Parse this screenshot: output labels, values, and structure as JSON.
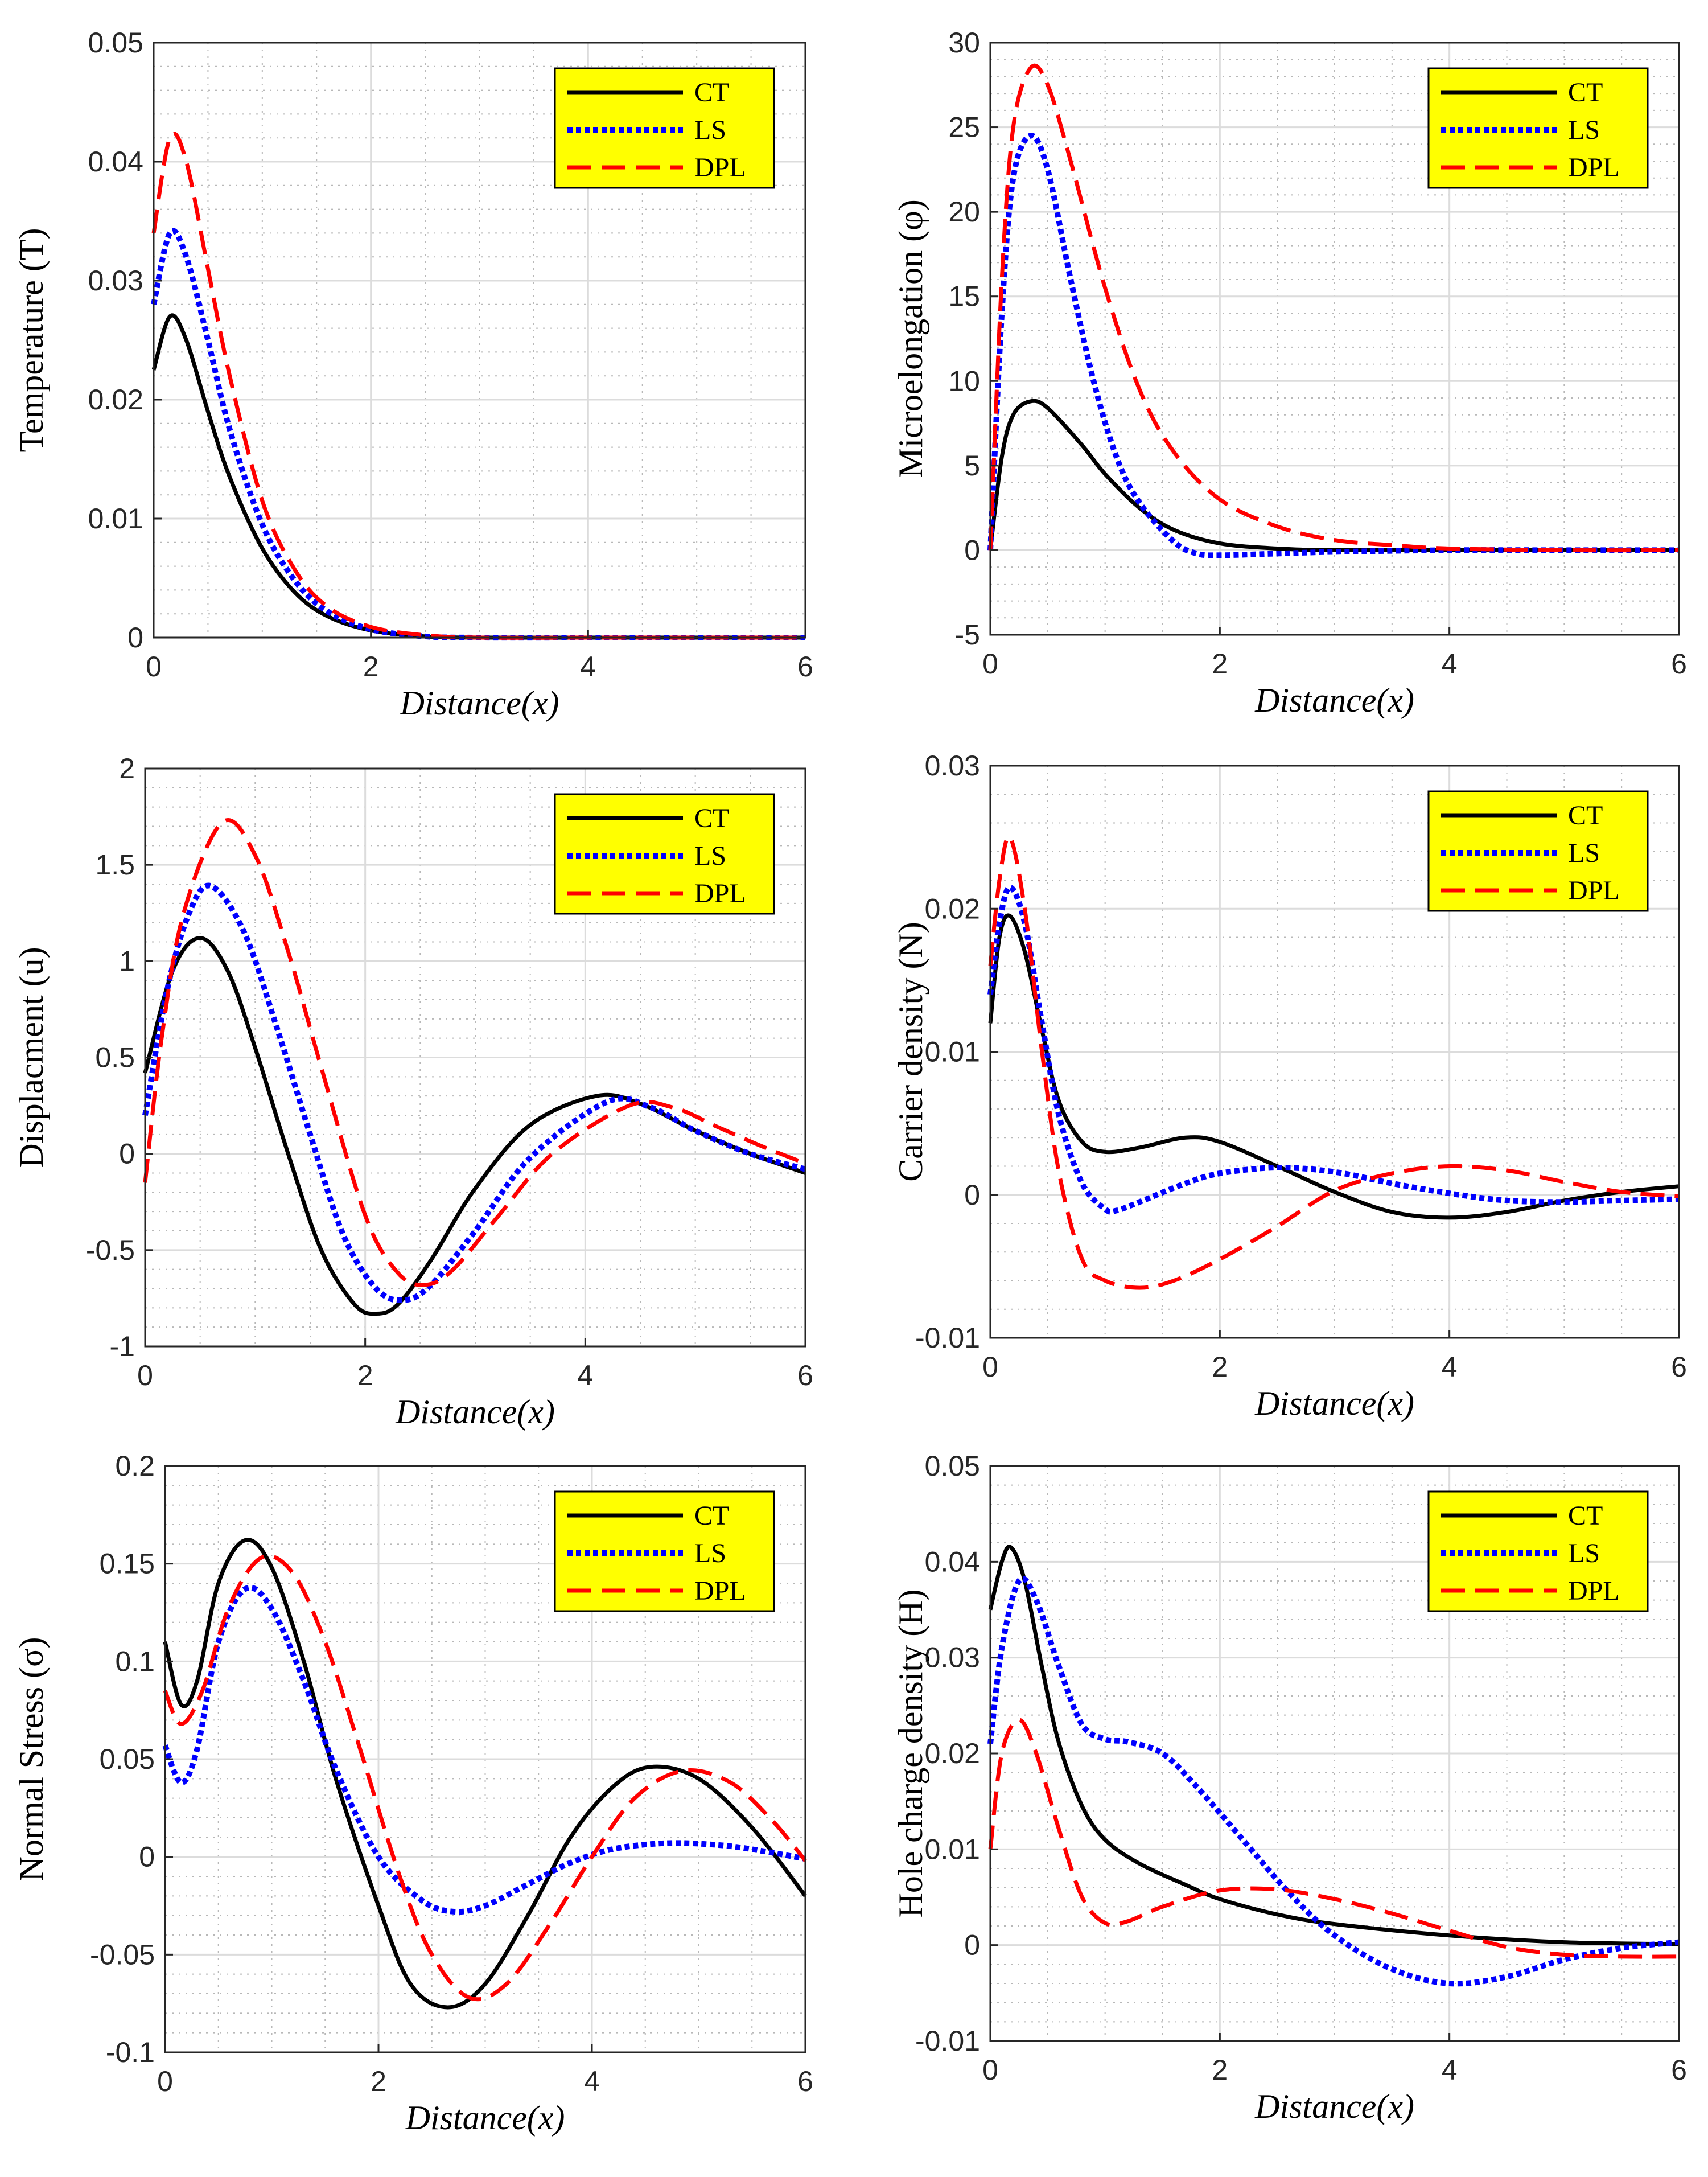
{
  "chart_data": [
    {
      "type": "line",
      "xlabel": "Distance(x)",
      "ylabel": "Temperature (T)",
      "xlim": [
        0,
        6
      ],
      "ylim": [
        0,
        0.05
      ],
      "xticks": [
        0,
        2,
        4,
        6
      ],
      "xtick_labels": [
        "0",
        "2",
        "4",
        "6"
      ],
      "yticks": [
        0,
        0.01,
        0.02,
        0.03,
        0.04,
        0.05
      ],
      "ytick_labels": [
        "0",
        "0.01",
        "0.02",
        "0.03",
        "0.04",
        "0.05"
      ],
      "grid": true,
      "legend_position": "top-right",
      "series": [
        {
          "name": "CT",
          "x": [
            0,
            0.15,
            0.3,
            0.5,
            0.7,
            1.0,
            1.3,
            1.6,
            2.0,
            2.5,
            3.0,
            4.0,
            5.0,
            6.0
          ],
          "y": [
            0.0225,
            0.027,
            0.025,
            0.019,
            0.0135,
            0.0075,
            0.0038,
            0.0018,
            0.0006,
            0.0001,
            0,
            0,
            0,
            0
          ]
        },
        {
          "name": "LS",
          "x": [
            0,
            0.15,
            0.3,
            0.5,
            0.7,
            1.0,
            1.3,
            1.6,
            2.0,
            2.5,
            3.0,
            4.0,
            5.0,
            6.0
          ],
          "y": [
            0.028,
            0.034,
            0.032,
            0.025,
            0.0175,
            0.0095,
            0.0048,
            0.0022,
            0.0007,
            0.0001,
            0,
            0,
            0,
            0
          ]
        },
        {
          "name": "DPL",
          "x": [
            0,
            0.15,
            0.3,
            0.5,
            0.7,
            1.0,
            1.3,
            1.6,
            2.0,
            2.5,
            3.0,
            4.0,
            5.0,
            6.0
          ],
          "y": [
            0.034,
            0.042,
            0.04,
            0.031,
            0.022,
            0.0115,
            0.0057,
            0.0026,
            0.0009,
            0.0002,
            0,
            0,
            0,
            0
          ]
        }
      ]
    },
    {
      "type": "line",
      "xlabel": "Distance(x)",
      "ylabel": "Microelongation (φ)",
      "xlim": [
        0,
        6
      ],
      "ylim": [
        -5,
        30
      ],
      "xticks": [
        0,
        2,
        4,
        6
      ],
      "xtick_labels": [
        "0",
        "2",
        "4",
        "6"
      ],
      "yticks": [
        -5,
        0,
        5,
        10,
        15,
        20,
        25,
        30
      ],
      "ytick_labels": [
        "-5",
        "0",
        "5",
        "10",
        "15",
        "20",
        "25",
        "30"
      ],
      "grid": true,
      "legend_position": "top-right",
      "series": [
        {
          "name": "CT",
          "x": [
            0,
            0.1,
            0.2,
            0.35,
            0.5,
            0.8,
            1.0,
            1.3,
            1.6,
            2.0,
            2.5,
            3.0,
            4.0,
            5.0,
            6.0
          ],
          "y": [
            0,
            5.5,
            8.0,
            8.8,
            8.4,
            6.2,
            4.5,
            2.5,
            1.2,
            0.4,
            0.1,
            0,
            0,
            0,
            0
          ]
        },
        {
          "name": "LS",
          "x": [
            0,
            0.1,
            0.2,
            0.35,
            0.5,
            0.7,
            0.9,
            1.1,
            1.3,
            1.6,
            1.8,
            2.0,
            2.5,
            3.0,
            4.0,
            5.0,
            6.0
          ],
          "y": [
            0,
            14.0,
            22.0,
            24.5,
            22.5,
            16.0,
            10.0,
            5.5,
            2.8,
            0.5,
            -0.2,
            -0.3,
            -0.2,
            -0.1,
            0,
            0,
            0
          ]
        },
        {
          "name": "DPL",
          "x": [
            0,
            0.1,
            0.2,
            0.35,
            0.5,
            0.7,
            1.0,
            1.3,
            1.6,
            2.0,
            2.5,
            3.0,
            3.5,
            4.0,
            5.0,
            6.0
          ],
          "y": [
            0,
            16.0,
            25.0,
            28.5,
            27.5,
            23.0,
            15.5,
            9.5,
            5.8,
            3.0,
            1.4,
            0.6,
            0.3,
            0.1,
            0,
            0
          ]
        }
      ]
    },
    {
      "type": "line",
      "xlabel": "Distance(x)",
      "ylabel": "Displacment (u)",
      "xlim": [
        0,
        6
      ],
      "ylim": [
        -1,
        2
      ],
      "xticks": [
        0,
        2,
        4,
        6
      ],
      "xtick_labels": [
        "0",
        "2",
        "4",
        "6"
      ],
      "yticks": [
        -1,
        -0.5,
        0,
        0.5,
        1,
        1.5,
        2
      ],
      "ytick_labels": [
        "-1",
        "-0.5",
        "0",
        "0.5",
        "1",
        "1.5",
        "2"
      ],
      "grid": true,
      "legend_position": "top-right",
      "series": [
        {
          "name": "CT",
          "x": [
            0,
            0.25,
            0.5,
            0.75,
            1.0,
            1.3,
            1.6,
            1.9,
            2.1,
            2.3,
            2.6,
            3.0,
            3.5,
            4.1,
            4.5,
            5.0,
            5.5,
            6.0
          ],
          "y": [
            0.42,
            0.95,
            1.12,
            0.95,
            0.55,
            0.0,
            -0.5,
            -0.78,
            -0.83,
            -0.78,
            -0.55,
            -0.18,
            0.15,
            0.3,
            0.26,
            0.12,
            0.0,
            -0.1
          ]
        },
        {
          "name": "LS",
          "x": [
            0,
            0.2,
            0.4,
            0.6,
            0.9,
            1.2,
            1.5,
            1.8,
            2.1,
            2.35,
            2.6,
            3.0,
            3.5,
            4.2,
            4.6,
            5.0,
            5.5,
            6.0
          ],
          "y": [
            0.2,
            0.85,
            1.25,
            1.39,
            1.15,
            0.65,
            0.1,
            -0.42,
            -0.7,
            -0.76,
            -0.68,
            -0.4,
            -0.02,
            0.27,
            0.24,
            0.12,
            0.0,
            -0.08
          ]
        },
        {
          "name": "DPL",
          "x": [
            0,
            0.15,
            0.35,
            0.7,
            1.0,
            1.3,
            1.6,
            2.0,
            2.3,
            2.55,
            2.8,
            3.2,
            3.7,
            4.4,
            4.8,
            5.2,
            5.6,
            6.0
          ],
          "y": [
            -0.15,
            0.6,
            1.25,
            1.72,
            1.55,
            1.05,
            0.45,
            -0.32,
            -0.62,
            -0.68,
            -0.6,
            -0.33,
            0.0,
            0.25,
            0.24,
            0.14,
            0.04,
            -0.05
          ]
        }
      ]
    },
    {
      "type": "line",
      "xlabel": "Distance(x)",
      "ylabel": "Carrier density (N)",
      "xlim": [
        0,
        6
      ],
      "ylim": [
        -0.01,
        0.03
      ],
      "xticks": [
        0,
        2,
        4,
        6
      ],
      "xtick_labels": [
        "0",
        "2",
        "4",
        "6"
      ],
      "yticks": [
        -0.01,
        0,
        0.01,
        0.02,
        0.03
      ],
      "ytick_labels": [
        "-0.01",
        "0",
        "0.01",
        "0.02",
        "0.03"
      ],
      "grid": true,
      "legend_position": "top-right",
      "series": [
        {
          "name": "CT",
          "x": [
            0,
            0.08,
            0.17,
            0.3,
            0.45,
            0.6,
            0.8,
            1.0,
            1.3,
            1.7,
            2.0,
            2.5,
            3.0,
            3.5,
            4.0,
            4.5,
            5.0,
            5.5,
            6.0
          ],
          "y": [
            0.012,
            0.018,
            0.0195,
            0.017,
            0.0115,
            0.0065,
            0.0037,
            0.003,
            0.0033,
            0.004,
            0.0037,
            0.002,
            0.0002,
            -0.0012,
            -0.0016,
            -0.0012,
            -0.0004,
            0.0002,
            0.0006
          ]
        },
        {
          "name": "LS",
          "x": [
            0,
            0.08,
            0.17,
            0.3,
            0.45,
            0.6,
            0.8,
            1.0,
            1.1,
            1.3,
            1.7,
            2.0,
            2.5,
            3.0,
            3.5,
            4.0,
            4.5,
            5.0,
            5.5,
            6.0
          ],
          "y": [
            0.014,
            0.019,
            0.0215,
            0.019,
            0.012,
            0.0055,
            0.0008,
            -0.001,
            -0.0011,
            -0.0005,
            0.0008,
            0.0015,
            0.0019,
            0.0016,
            0.0008,
            0.0001,
            -0.0004,
            -0.0005,
            -0.0004,
            -0.0003
          ]
        },
        {
          "name": "DPL",
          "x": [
            0,
            0.08,
            0.17,
            0.3,
            0.45,
            0.6,
            0.8,
            1.0,
            1.3,
            1.6,
            2.0,
            2.5,
            3.0,
            3.5,
            4.0,
            4.5,
            5.0,
            5.5,
            6.0
          ],
          "y": [
            0.016,
            0.022,
            0.025,
            0.02,
            0.01,
            0.0015,
            -0.0045,
            -0.006,
            -0.0065,
            -0.006,
            -0.0045,
            -0.0022,
            0.0003,
            0.0015,
            0.002,
            0.0017,
            0.0009,
            0.0002,
            -0.0001
          ]
        }
      ]
    },
    {
      "type": "line",
      "xlabel": "Distance(x)",
      "ylabel": "Normal Stress (σ)",
      "xlim": [
        0,
        6
      ],
      "ylim": [
        -0.1,
        0.2
      ],
      "xticks": [
        0,
        2,
        4,
        6
      ],
      "xtick_labels": [
        "0",
        "2",
        "4",
        "6"
      ],
      "yticks": [
        -0.1,
        -0.05,
        0,
        0.05,
        0.1,
        0.15,
        0.2
      ],
      "ytick_labels": [
        "-0.1",
        "-0.05",
        "0",
        "0.05",
        "0.1",
        "0.15",
        "0.2"
      ],
      "grid": true,
      "legend_position": "top-right",
      "series": [
        {
          "name": "CT",
          "x": [
            0,
            0.15,
            0.3,
            0.5,
            0.75,
            1.0,
            1.3,
            1.6,
            2.0,
            2.3,
            2.65,
            3.0,
            3.4,
            3.8,
            4.2,
            4.55,
            5.0,
            5.5,
            6.0
          ],
          "y": [
            0.11,
            0.078,
            0.09,
            0.14,
            0.162,
            0.148,
            0.1,
            0.04,
            -0.025,
            -0.065,
            -0.077,
            -0.065,
            -0.03,
            0.01,
            0.036,
            0.046,
            0.04,
            0.015,
            -0.02
          ]
        },
        {
          "name": "LS",
          "x": [
            0,
            0.15,
            0.3,
            0.5,
            0.75,
            1.0,
            1.3,
            1.6,
            2.0,
            2.4,
            2.7,
            3.0,
            3.4,
            3.8,
            4.2,
            4.7,
            5.2,
            5.6,
            6.0
          ],
          "y": [
            0.057,
            0.038,
            0.055,
            0.11,
            0.137,
            0.127,
            0.09,
            0.045,
            0.0,
            -0.022,
            -0.028,
            -0.025,
            -0.014,
            -0.003,
            0.004,
            0.007,
            0.006,
            0.003,
            -0.001
          ]
        },
        {
          "name": "DPL",
          "x": [
            0,
            0.15,
            0.35,
            0.6,
            0.9,
            1.2,
            1.5,
            1.8,
            2.2,
            2.5,
            2.85,
            3.2,
            3.6,
            4.0,
            4.4,
            4.85,
            5.3,
            5.7,
            6.0
          ],
          "y": [
            0.085,
            0.068,
            0.085,
            0.128,
            0.153,
            0.145,
            0.11,
            0.06,
            -0.01,
            -0.05,
            -0.072,
            -0.065,
            -0.035,
            0.0,
            0.03,
            0.044,
            0.038,
            0.018,
            -0.002
          ]
        }
      ]
    },
    {
      "type": "line",
      "xlabel": "Distance(x)",
      "ylabel": "Hole  charge  density (H)",
      "xlim": [
        0,
        6
      ],
      "ylim": [
        -0.01,
        0.05
      ],
      "xticks": [
        0,
        2,
        4,
        6
      ],
      "xtick_labels": [
        "0",
        "2",
        "4",
        "6"
      ],
      "yticks": [
        -0.01,
        0,
        0.01,
        0.02,
        0.03,
        0.04,
        0.05
      ],
      "ytick_labels": [
        "-0.01",
        "0",
        "0.01",
        "0.02",
        "0.03",
        "0.04",
        "0.05"
      ],
      "grid": true,
      "legend_position": "top-right",
      "series": [
        {
          "name": "CT",
          "x": [
            0,
            0.1,
            0.18,
            0.3,
            0.45,
            0.6,
            0.8,
            1.0,
            1.3,
            1.7,
            2.0,
            2.5,
            3.0,
            4.0,
            5.0,
            6.0
          ],
          "y": [
            0.035,
            0.04,
            0.0415,
            0.038,
            0.029,
            0.021,
            0.0145,
            0.011,
            0.0085,
            0.0063,
            0.0048,
            0.0032,
            0.0022,
            0.001,
            0.0003,
            0.0001
          ]
        },
        {
          "name": "LS",
          "x": [
            0,
            0.1,
            0.25,
            0.4,
            0.6,
            0.8,
            1.0,
            1.2,
            1.5,
            1.8,
            2.2,
            2.6,
            3.0,
            3.5,
            4.0,
            4.5,
            5.0,
            5.5,
            6.0
          ],
          "y": [
            0.021,
            0.031,
            0.038,
            0.036,
            0.029,
            0.023,
            0.0215,
            0.0212,
            0.02,
            0.0165,
            0.011,
            0.0055,
            0.001,
            -0.0025,
            -0.004,
            -0.0033,
            -0.0015,
            -0.0003,
            0.0003
          ]
        },
        {
          "name": "DPL",
          "x": [
            0,
            0.1,
            0.25,
            0.4,
            0.6,
            0.8,
            1.0,
            1.2,
            1.5,
            2.0,
            2.5,
            3.0,
            3.5,
            4.0,
            4.5,
            5.0,
            5.5,
            6.0
          ],
          "y": [
            0.01,
            0.02,
            0.0235,
            0.02,
            0.012,
            0.005,
            0.0023,
            0.0025,
            0.004,
            0.0057,
            0.0058,
            0.0048,
            0.0033,
            0.0015,
            -0.0002,
            -0.001,
            -0.0012,
            -0.0012
          ]
        }
      ]
    }
  ],
  "legend": {
    "entries": [
      "CT",
      "LS",
      "DPL"
    ],
    "colors": [
      "#000000",
      "#0000ff",
      "#ff0000"
    ],
    "styles": [
      "solid",
      "dotted",
      "dashed"
    ],
    "background": "#ffff00"
  }
}
